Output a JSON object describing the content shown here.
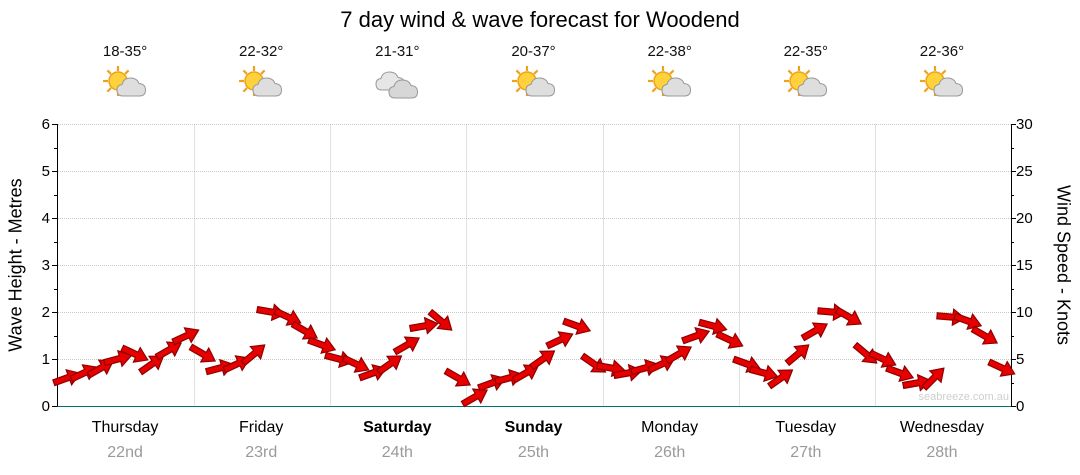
{
  "title": "7 day wind & wave forecast for Woodend",
  "watermark": "seabreeze.com.au",
  "axes": {
    "left_title": "Wave Height - Metres",
    "left_ticks": [
      0,
      1,
      2,
      3,
      4,
      5,
      6
    ],
    "left_max": 6,
    "right_title": "Wind Speed - Knots",
    "right_ticks": [
      0,
      5,
      10,
      15,
      20,
      25,
      30
    ],
    "right_max": 30
  },
  "days": [
    {
      "name": "Thursday",
      "date": "22nd",
      "temp": "18-35°",
      "icon": "partly-cloudy",
      "weekend": false
    },
    {
      "name": "Friday",
      "date": "23rd",
      "temp": "22-32°",
      "icon": "partly-cloudy",
      "weekend": false
    },
    {
      "name": "Saturday",
      "date": "24th",
      "temp": "21-31°",
      "icon": "cloudy",
      "weekend": true
    },
    {
      "name": "Sunday",
      "date": "25th",
      "temp": "20-37°",
      "icon": "partly-cloudy",
      "weekend": true
    },
    {
      "name": "Monday",
      "date": "26th",
      "temp": "22-38°",
      "icon": "partly-cloudy",
      "weekend": false
    },
    {
      "name": "Tuesday",
      "date": "27th",
      "temp": "22-35°",
      "icon": "partly-cloudy",
      "weekend": false
    },
    {
      "name": "Wednesday",
      "date": "28th",
      "temp": "22-36°",
      "icon": "partly-cloudy",
      "weekend": false
    }
  ],
  "chart_data": {
    "type": "scatter",
    "title": "7 day wind & wave forecast for Woodend",
    "categories": [
      "Thursday 22nd",
      "Friday 23rd",
      "Saturday 24th",
      "Sunday 25th",
      "Monday 26th",
      "Tuesday 27th",
      "Wednesday 28th"
    ],
    "points_per_day": 8,
    "ylabel_left": "Wave Height - Metres",
    "ylim_left": [
      0,
      6
    ],
    "ylabel_right": "Wind Speed - Knots",
    "ylim_right": [
      0,
      30
    ],
    "grid": true,
    "marker": "red wind direction arrow",
    "series": [
      {
        "name": "Wind Speed (knots, estimated from arrow positions)",
        "values": [
          3,
          3.5,
          4,
          5,
          5.5,
          4.5,
          6,
          7.5,
          5.5,
          4,
          4.5,
          5.5,
          10,
          9.5,
          8,
          6.5,
          5,
          4.5,
          3.5,
          4.5,
          6.5,
          8.5,
          9,
          3,
          1,
          2.5,
          3,
          3.5,
          5,
          7,
          8.5,
          4.5,
          4,
          3.5,
          4,
          4.5,
          5.5,
          7.5,
          8.5,
          7,
          4.5,
          3.5,
          3,
          5.5,
          8,
          10,
          9.5,
          5.5,
          5,
          3.5,
          2.5,
          3,
          9.5,
          9,
          7.5,
          4
        ],
        "directions_deg": [
          -20,
          -25,
          -30,
          -15,
          25,
          -35,
          -30,
          -25,
          30,
          -15,
          -25,
          -40,
          10,
          25,
          30,
          20,
          15,
          25,
          -20,
          -35,
          -30,
          -10,
          40,
          30,
          -30,
          -20,
          -15,
          -30,
          -35,
          -25,
          20,
          35,
          10,
          -10,
          -15,
          -25,
          -30,
          -20,
          15,
          25,
          20,
          15,
          -35,
          -40,
          -30,
          5,
          30,
          40,
          25,
          20,
          -10,
          -45,
          5,
          20,
          30,
          25
        ]
      }
    ],
    "temperature_ranges": [
      "18-35°",
      "22-32°",
      "21-31°",
      "20-37°",
      "22-38°",
      "22-35°",
      "22-36°"
    ],
    "day_icons": [
      "partly-cloudy",
      "partly-cloudy",
      "cloudy",
      "partly-cloudy",
      "partly-cloudy",
      "partly-cloudy",
      "partly-cloudy"
    ],
    "arrow_color": "#e60000",
    "arrow_outline_color": "#8f0000"
  }
}
